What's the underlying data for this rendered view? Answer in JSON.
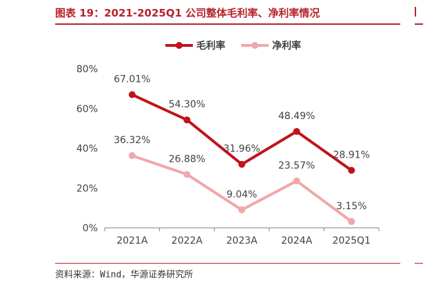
{
  "figure": {
    "title": "图表 19：2021-2025Q1 公司整体毛利率、净利率情况",
    "source": "资料来源：Wind，华源证券研究所"
  },
  "colors": {
    "accent": "#b5232a",
    "series_gross": "#c0131b",
    "series_net": "#f1a7a9",
    "axis": "#7f7f7f",
    "text": "#404040"
  },
  "chart_data": {
    "type": "line",
    "title": "",
    "xlabel": "",
    "ylabel": "",
    "categories": [
      "2021A",
      "2022A",
      "2023A",
      "2024A",
      "2025Q1"
    ],
    "ylim": [
      0,
      80
    ],
    "yticks": [
      0,
      20,
      40,
      60,
      80
    ],
    "ytick_labels": [
      "0%",
      "20%",
      "40%",
      "60%",
      "80%"
    ],
    "grid": false,
    "legend": "top-center",
    "series": [
      {
        "name": "毛利率",
        "values": [
          67.01,
          54.3,
          31.96,
          48.49,
          28.91
        ],
        "labels": [
          "67.01%",
          "54.30%",
          "31.96%",
          "48.49%",
          "28.91%"
        ]
      },
      {
        "name": "净利率",
        "values": [
          36.32,
          26.88,
          9.04,
          23.57,
          3.15
        ],
        "labels": [
          "36.32%",
          "26.88%",
          "9.04%",
          "23.57%",
          "3.15%"
        ]
      }
    ]
  }
}
